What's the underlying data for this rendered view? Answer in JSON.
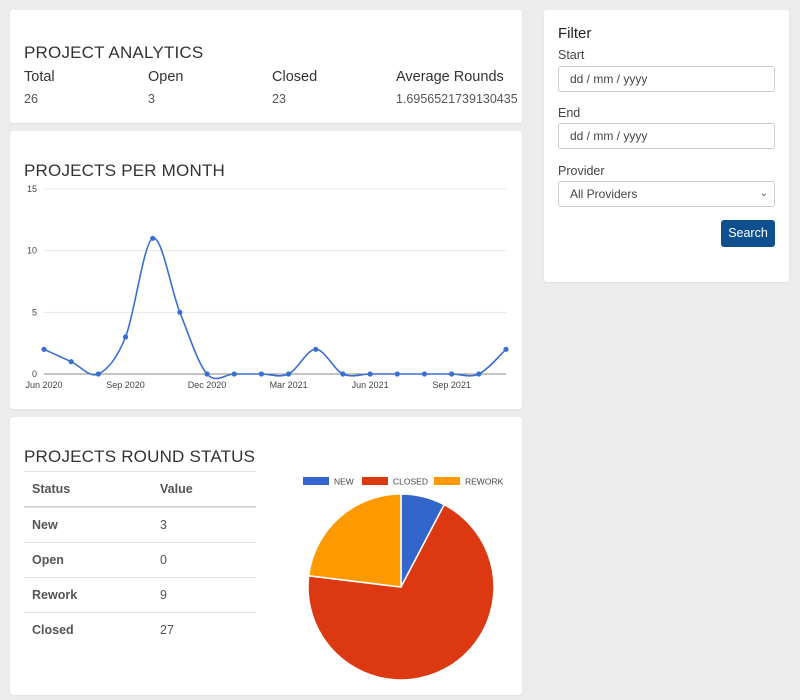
{
  "analytics": {
    "title": "PROJECT ANALYTICS",
    "stats": [
      {
        "label": "Total",
        "value": "26"
      },
      {
        "label": "Open",
        "value": "3"
      },
      {
        "label": "Closed",
        "value": "23"
      },
      {
        "label": "Average Rounds",
        "value": "1.6956521739130435"
      }
    ]
  },
  "projects_chart": {
    "title": "PROJECTS PER MONTH"
  },
  "round_status": {
    "title": "PROJECTS ROUND STATUS",
    "table": {
      "headers": [
        "Status",
        "Value"
      ],
      "rows": [
        {
          "status": "New",
          "value": "3"
        },
        {
          "status": "Open",
          "value": "0"
        },
        {
          "status": "Rework",
          "value": "9"
        },
        {
          "status": "Closed",
          "value": "27"
        }
      ]
    }
  },
  "filter": {
    "title": "Filter",
    "start_label": "Start",
    "start_placeholder": "dd / mm / yyyy",
    "end_label": "End",
    "end_placeholder": "dd / mm / yyyy",
    "provider_label": "Provider",
    "provider_selected": "All Providers",
    "search_label": "Search"
  },
  "colors": {
    "line": "#3a6fd0",
    "new": "#3366cc",
    "closed": "#dc3912",
    "rework": "#ff9900",
    "button": "#0d4f8f"
  },
  "chart_data": [
    {
      "type": "line",
      "title": "PROJECTS PER MONTH",
      "x": [
        "Jun 2020",
        "Jul 2020",
        "Aug 2020",
        "Sep 2020",
        "Oct 2020",
        "Nov 2020",
        "Dec 2020",
        "Jan 2021",
        "Feb 2021",
        "Mar 2021",
        "Apr 2021",
        "May 2021",
        "Jun 2021",
        "Jul 2021",
        "Aug 2021",
        "Sep 2021",
        "Oct 2021",
        "Nov 2021"
      ],
      "x_tick_labels": [
        "Jun 2020",
        "Sep 2020",
        "Dec 2020",
        "Mar 2021",
        "Jun 2021",
        "Sep 2021"
      ],
      "values": [
        2,
        1,
        0,
        3,
        11,
        5,
        0,
        0,
        0,
        0,
        2,
        0,
        0,
        0,
        0,
        0,
        0,
        2
      ],
      "ylim": [
        0,
        15
      ],
      "y_ticks": [
        0,
        5,
        10,
        15
      ],
      "grid": true,
      "smooth": true
    },
    {
      "type": "pie",
      "legend_position": "top",
      "categories": [
        "NEW",
        "CLOSED",
        "REWORK"
      ],
      "values": [
        3,
        27,
        9
      ]
    }
  ]
}
